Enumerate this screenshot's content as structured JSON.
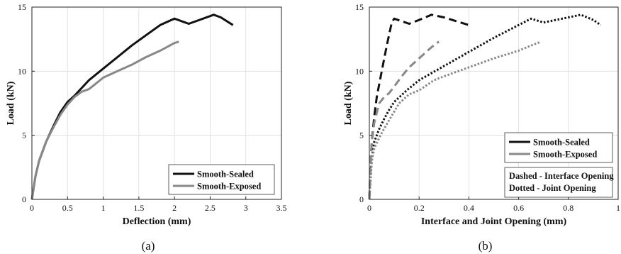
{
  "chart_data": [
    {
      "type": "line",
      "caption": "(a)",
      "xlabel": "Deflection (mm)",
      "ylabel": "Load (kN)",
      "xlim": [
        0,
        3.5
      ],
      "ylim": [
        0,
        15
      ],
      "xticks": [
        "0",
        "0.5",
        "1",
        "1.5",
        "2",
        "2.5",
        "3",
        "3.5"
      ],
      "yticks": [
        "0",
        "5",
        "10",
        "15"
      ],
      "grid": true,
      "legend": {
        "placement": "bottom-right",
        "entries": [
          "Smooth-Sealed",
          "Smooth-Exposed"
        ]
      },
      "series": [
        {
          "name": "Smooth-Sealed",
          "color": "#111111",
          "dash": "solid",
          "x": [
            0,
            0.05,
            0.1,
            0.2,
            0.3,
            0.4,
            0.5,
            0.6,
            0.8,
            1.0,
            1.2,
            1.4,
            1.6,
            1.8,
            2.0,
            2.05,
            2.2,
            2.35,
            2.55,
            2.65,
            2.82
          ],
          "y": [
            0,
            1.8,
            3.0,
            4.5,
            5.7,
            6.8,
            7.6,
            8.1,
            9.3,
            10.2,
            11.1,
            12.0,
            12.8,
            13.6,
            14.1,
            14.0,
            13.7,
            14.0,
            14.4,
            14.2,
            13.6
          ]
        },
        {
          "name": "Smooth-Exposed",
          "color": "#888888",
          "dash": "solid",
          "x": [
            0,
            0.05,
            0.1,
            0.2,
            0.3,
            0.4,
            0.5,
            0.6,
            0.7,
            0.8,
            1.0,
            1.2,
            1.4,
            1.6,
            1.8,
            2.0,
            2.06
          ],
          "y": [
            0,
            1.8,
            3.0,
            4.5,
            5.6,
            6.6,
            7.4,
            8.0,
            8.4,
            8.6,
            9.5,
            10.0,
            10.5,
            11.1,
            11.6,
            12.2,
            12.3
          ]
        }
      ]
    },
    {
      "type": "line",
      "caption": "(b)",
      "xlabel": "Interface and Joint Opening (mm)",
      "ylabel": "Load (kN)",
      "xlim": [
        0,
        1
      ],
      "ylim": [
        0,
        15
      ],
      "xticks": [
        "0",
        "0.2",
        "0.4",
        "0.6",
        "0.8",
        "1"
      ],
      "yticks": [
        "0",
        "5",
        "10",
        "15"
      ],
      "grid": true,
      "legend": {
        "placement": "bottom-right",
        "entries": [
          "Smooth-Sealed",
          "Smooth-Exposed"
        ]
      },
      "annotation": [
        "Dashed - Interface Opening",
        "Dotted - Joint Opening"
      ],
      "series": [
        {
          "name": "Smooth-Sealed",
          "color": "#111111",
          "dash": "dashed",
          "x": [
            0,
            0.005,
            0.01,
            0.02,
            0.03,
            0.05,
            0.07,
            0.09,
            0.1,
            0.13,
            0.16,
            0.2,
            0.25,
            0.3,
            0.35,
            0.4
          ],
          "y": [
            0,
            3.0,
            4.5,
            6.5,
            8.0,
            10.0,
            12.0,
            13.8,
            14.1,
            13.9,
            13.7,
            14.0,
            14.4,
            14.2,
            13.9,
            13.6
          ]
        },
        {
          "name": "Smooth-Sealed",
          "color": "#111111",
          "dash": "dotted",
          "x": [
            0,
            0.005,
            0.01,
            0.02,
            0.04,
            0.06,
            0.08,
            0.1,
            0.15,
            0.2,
            0.3,
            0.4,
            0.5,
            0.6,
            0.65,
            0.7,
            0.8,
            0.85,
            0.9,
            0.93
          ],
          "y": [
            0,
            2.0,
            3.2,
            4.5,
            5.5,
            6.3,
            7.0,
            7.6,
            8.5,
            9.3,
            10.4,
            11.5,
            12.6,
            13.6,
            14.1,
            13.8,
            14.2,
            14.4,
            14.0,
            13.6
          ]
        },
        {
          "name": "Smooth-Exposed",
          "color": "#888888",
          "dash": "dashed",
          "x": [
            0,
            0.005,
            0.01,
            0.02,
            0.04,
            0.06,
            0.08,
            0.1,
            0.13,
            0.16,
            0.2,
            0.24,
            0.27,
            0.28
          ],
          "y": [
            0,
            3.0,
            4.5,
            6.0,
            7.5,
            8.0,
            8.3,
            8.8,
            9.6,
            10.3,
            11.0,
            11.7,
            12.2,
            12.3
          ]
        },
        {
          "name": "Smooth-Exposed",
          "color": "#888888",
          "dash": "dotted",
          "x": [
            0,
            0.005,
            0.01,
            0.02,
            0.05,
            0.08,
            0.12,
            0.16,
            0.2,
            0.26,
            0.3,
            0.4,
            0.5,
            0.6,
            0.65,
            0.69
          ],
          "y": [
            0,
            1.5,
            3.0,
            4.0,
            5.2,
            6.2,
            7.5,
            8.2,
            8.5,
            9.3,
            9.6,
            10.3,
            11.0,
            11.6,
            12.0,
            12.3
          ]
        }
      ]
    }
  ]
}
